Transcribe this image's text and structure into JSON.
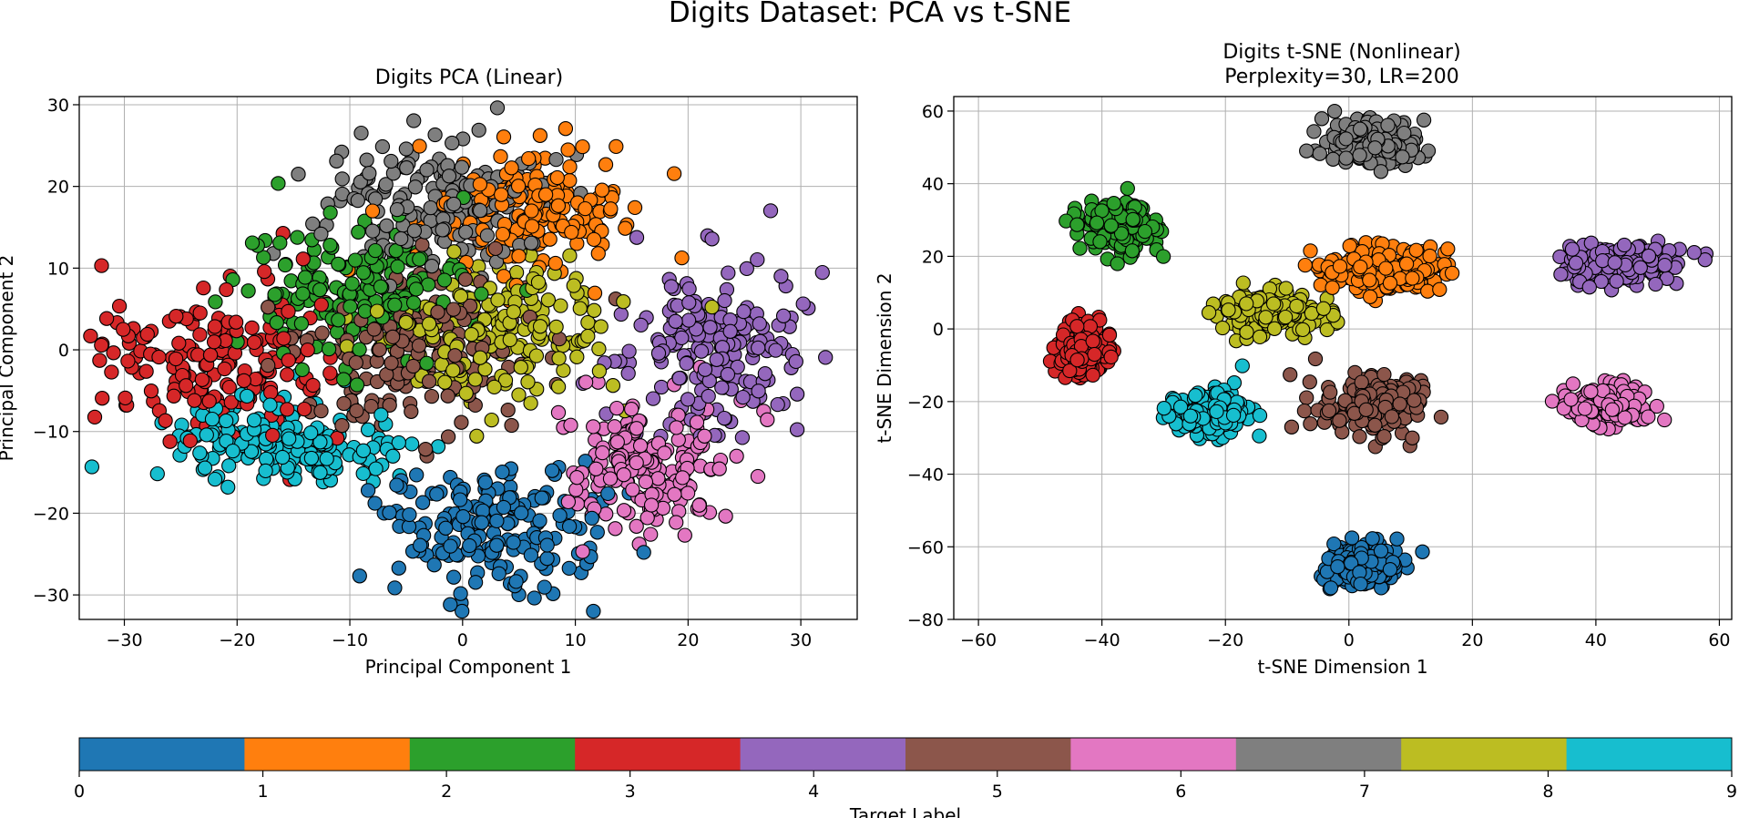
{
  "figure": {
    "suptitle": "Digits Dataset: PCA vs t-SNE",
    "class_colors": [
      "#1f77b4",
      "#ff7f0e",
      "#2ca02c",
      "#d62728",
      "#9467bd",
      "#8c564b",
      "#e377c2",
      "#7f7f7f",
      "#bcbd22",
      "#17becf"
    ]
  },
  "chart_data": [
    {
      "type": "scatter",
      "title": "Digits PCA (Linear)",
      "xlabel": "Principal Component 1",
      "ylabel": "Principal Component 2",
      "xlim": [
        -34,
        35
      ],
      "ylim": [
        -33,
        31
      ],
      "xticks": [
        -30,
        -20,
        -10,
        0,
        10,
        20,
        30
      ],
      "yticks": [
        -30,
        -20,
        -10,
        0,
        10,
        20,
        30
      ],
      "grid": true,
      "marker": "circle, black edge",
      "point_count": 1797,
      "clusters": [
        {
          "label": 0,
          "approx_center": [
            3,
            -22
          ]
        },
        {
          "label": 1,
          "approx_center": [
            6,
            17
          ]
        },
        {
          "label": 2,
          "approx_center": [
            -10,
            7
          ]
        },
        {
          "label": 3,
          "approx_center": [
            -22,
            -2
          ]
        },
        {
          "label": 4,
          "approx_center": [
            22,
            0
          ]
        },
        {
          "label": 5,
          "approx_center": [
            -4,
            0
          ]
        },
        {
          "label": 6,
          "approx_center": [
            17,
            -14
          ]
        },
        {
          "label": 7,
          "approx_center": [
            -2,
            18
          ]
        },
        {
          "label": 8,
          "approx_center": [
            3,
            2
          ]
        },
        {
          "label": 9,
          "approx_center": [
            -16,
            -11
          ]
        }
      ]
    },
    {
      "type": "scatter",
      "title": "Digits t-SNE (Nonlinear)\nPerplexity=30, LR=200",
      "title_lines": [
        "Digits t-SNE (Nonlinear)",
        "Perplexity=30, LR=200"
      ],
      "xlabel": "t-SNE Dimension 1",
      "ylabel": "t-SNE Dimension 2",
      "xlim": [
        -64,
        62
      ],
      "ylim": [
        -80,
        64
      ],
      "xticks": [
        -60,
        -40,
        -20,
        0,
        20,
        40,
        60
      ],
      "yticks": [
        -80,
        -60,
        -40,
        -20,
        0,
        20,
        40,
        60
      ],
      "grid": true,
      "marker": "circle, black edge",
      "point_count": 1797,
      "clusters": [
        {
          "label": 0,
          "approx_center": [
            2,
            -65
          ]
        },
        {
          "label": 1,
          "approx_center": [
            6,
            16
          ]
        },
        {
          "label": 2,
          "approx_center": [
            -37,
            29
          ]
        },
        {
          "label": 3,
          "approx_center": [
            -43,
            -6
          ]
        },
        {
          "label": 4,
          "approx_center": [
            44,
            18
          ]
        },
        {
          "label": 5,
          "approx_center": [
            4,
            -21
          ]
        },
        {
          "label": 6,
          "approx_center": [
            42,
            -21
          ]
        },
        {
          "label": 7,
          "approx_center": [
            4,
            51
          ]
        },
        {
          "label": 8,
          "approx_center": [
            -13,
            5
          ]
        },
        {
          "label": 9,
          "approx_center": [
            -23,
            -23
          ]
        }
      ]
    }
  ],
  "colorbar": {
    "label": "Target Label",
    "range": [
      0,
      9
    ],
    "ticks": [
      0,
      1,
      2,
      3,
      4,
      5,
      6,
      7,
      8,
      9
    ],
    "colors": [
      "#1f77b4",
      "#ff7f0e",
      "#2ca02c",
      "#d62728",
      "#9467bd",
      "#8c564b",
      "#e377c2",
      "#7f7f7f",
      "#bcbd22",
      "#17becf"
    ]
  }
}
